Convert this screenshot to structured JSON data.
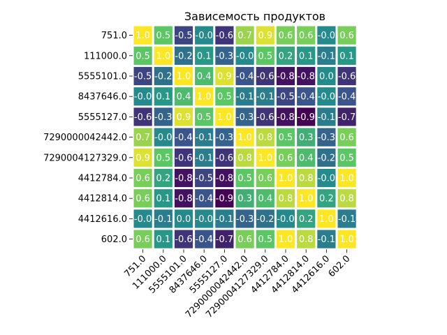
{
  "chart_data": {
    "type": "heatmap",
    "title": "Зависемость продуктов",
    "xlabel": "",
    "ylabel": "",
    "categories": [
      "751.0",
      "111000.0",
      "5555101.0",
      "8437646.0",
      "5555127.0",
      "7290000042442.0",
      "7290004127329.0",
      "4412784.0",
      "4412814.0",
      "4412616.0",
      "602.0"
    ],
    "values": [
      [
        1.0,
        0.5,
        -0.5,
        -0.0,
        -0.6,
        0.7,
        0.9,
        0.6,
        0.6,
        -0.0,
        0.6
      ],
      [
        0.5,
        1.0,
        -0.2,
        0.1,
        -0.3,
        -0.0,
        0.5,
        0.2,
        0.1,
        -0.1,
        0.1
      ],
      [
        -0.5,
        -0.2,
        1.0,
        0.4,
        0.9,
        -0.4,
        -0.6,
        -0.8,
        -0.8,
        0.0,
        -0.6
      ],
      [
        -0.0,
        0.1,
        0.4,
        1.0,
        0.5,
        -0.1,
        -0.1,
        -0.5,
        -0.4,
        -0.0,
        -0.4
      ],
      [
        -0.6,
        -0.3,
        0.9,
        0.5,
        1.0,
        -0.3,
        -0.6,
        -0.8,
        -0.9,
        -0.1,
        -0.7
      ],
      [
        0.7,
        -0.0,
        -0.4,
        -0.1,
        -0.3,
        1.0,
        0.8,
        0.5,
        0.3,
        -0.3,
        0.6
      ],
      [
        0.9,
        0.5,
        -0.6,
        -0.1,
        -0.6,
        0.8,
        1.0,
        0.6,
        0.4,
        -0.2,
        0.5
      ],
      [
        0.6,
        0.2,
        -0.8,
        -0.5,
        -0.8,
        0.5,
        0.6,
        1.0,
        0.8,
        -0.0,
        1.0
      ],
      [
        0.6,
        0.1,
        -0.8,
        -0.4,
        -0.9,
        0.3,
        0.4,
        0.8,
        1.0,
        0.2,
        0.8
      ],
      [
        -0.0,
        -0.1,
        0.0,
        -0.0,
        -0.1,
        -0.3,
        -0.2,
        -0.0,
        0.2,
        1.0,
        -0.1
      ],
      [
        0.6,
        0.1,
        -0.6,
        -0.4,
        -0.7,
        0.6,
        0.5,
        1.0,
        0.8,
        -0.1,
        1.0
      ]
    ],
    "colormap": "viridis",
    "vmin": -0.9,
    "vmax": 1.0,
    "annotations": true,
    "cell_text_color": "#ffffff",
    "gap_color": "#ffffff",
    "legend": "none",
    "grid": false
  }
}
